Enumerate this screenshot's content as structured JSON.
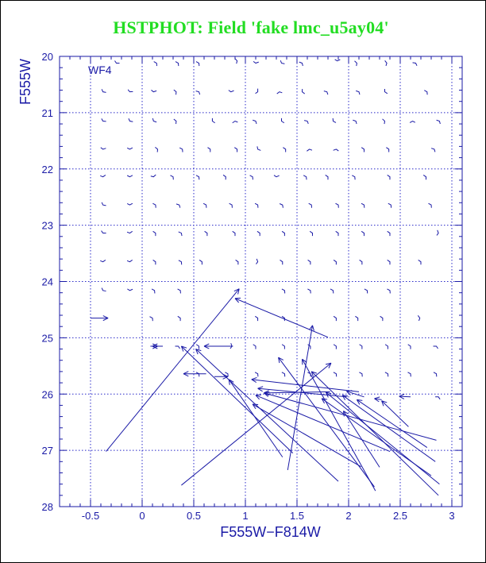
{
  "colors": {
    "title": "#22dd22",
    "axes": "#1a1aa6",
    "vectors": "#1a1aa6",
    "grid": "#2828c8",
    "background": "#ffffff"
  },
  "chart_data": {
    "type": "vector-field",
    "title": "HSTPHOT: Field 'fake lmc_u5ay04'",
    "panel_label": "WF4",
    "xlabel": "F555W−F814W",
    "ylabel": "F555W",
    "xlim": [
      -0.8,
      3.1
    ],
    "ylim": [
      28,
      20
    ],
    "y_inverted": true,
    "grid": true,
    "grid_style": "dotted",
    "xticks": [
      -0.5,
      0,
      0.5,
      1,
      1.5,
      2,
      2.5,
      3
    ],
    "xtick_labels": [
      "-0.5",
      "0",
      "0.5",
      "1",
      "1.5",
      "2",
      "2.5",
      "3"
    ],
    "yticks": [
      20,
      21,
      22,
      23,
      24,
      25,
      26,
      27,
      28
    ],
    "ytick_labels": [
      "20",
      "21",
      "22",
      "23",
      "24",
      "25",
      "26",
      "27",
      "28"
    ],
    "short_vectors": [
      [
        -0.25,
        20.12,
        -0.1,
        20.12
      ],
      [
        0.14,
        20.12,
        0.08,
        20.06
      ],
      [
        0.35,
        20.12,
        0.29,
        20.06
      ],
      [
        0.55,
        20.12,
        0.48,
        20.05
      ],
      [
        0.92,
        20.08,
        0.89,
        20.02
      ],
      [
        1.1,
        20.12,
        1.16,
        20.08
      ],
      [
        1.35,
        20.12,
        1.42,
        20.15
      ],
      [
        1.55,
        20.12,
        1.49,
        20.08
      ],
      [
        1.89,
        20.08,
        1.95,
        20.03
      ],
      [
        2.08,
        20.12,
        2.04,
        20.05
      ],
      [
        2.37,
        20.12,
        2.34,
        20.05
      ],
      [
        2.65,
        20.12,
        2.58,
        20.1
      ],
      [
        -0.38,
        20.63,
        -0.32,
        20.65
      ],
      [
        -0.12,
        20.63,
        -0.05,
        20.62
      ],
      [
        0.11,
        20.63,
        0.16,
        20.6
      ],
      [
        0.33,
        20.63,
        0.29,
        20.57
      ],
      [
        0.55,
        20.63,
        0.49,
        20.6
      ],
      [
        0.86,
        20.63,
        0.9,
        20.6
      ],
      [
        1.12,
        20.63,
        1.12,
        20.57
      ],
      [
        1.33,
        20.63,
        1.28,
        20.7
      ],
      [
        1.55,
        20.63,
        1.6,
        20.7
      ],
      [
        1.79,
        20.63,
        1.73,
        20.6
      ],
      [
        2.1,
        20.63,
        2.05,
        20.6
      ],
      [
        2.35,
        20.63,
        2.4,
        20.69
      ],
      [
        2.76,
        20.63,
        2.72,
        20.59
      ],
      [
        -0.38,
        21.15,
        -0.32,
        21.16
      ],
      [
        -0.12,
        21.15,
        -0.06,
        21.17
      ],
      [
        0.11,
        21.15,
        0.16,
        21.18
      ],
      [
        0.33,
        21.15,
        0.29,
        21.09
      ],
      [
        0.68,
        21.15,
        0.72,
        21.2
      ],
      [
        0.9,
        21.15,
        0.86,
        21.2
      ],
      [
        1.1,
        21.15,
        1.05,
        21.12
      ],
      [
        1.35,
        21.15,
        1.39,
        21.2
      ],
      [
        1.6,
        21.15,
        1.53,
        21.12
      ],
      [
        1.85,
        21.15,
        1.9,
        21.2
      ],
      [
        2.07,
        21.15,
        2.02,
        21.12
      ],
      [
        2.35,
        21.15,
        2.32,
        21.1
      ],
      [
        2.62,
        21.15,
        2.57,
        21.2
      ],
      [
        2.88,
        21.15,
        2.83,
        21.12
      ],
      [
        -0.38,
        21.65,
        -0.33,
        21.62
      ],
      [
        -0.12,
        21.65,
        -0.07,
        21.6
      ],
      [
        0.15,
        21.65,
        0.11,
        21.59
      ],
      [
        0.39,
        21.65,
        0.34,
        21.6
      ],
      [
        0.66,
        21.65,
        0.62,
        21.6
      ],
      [
        0.92,
        21.65,
        0.88,
        21.6
      ],
      [
        1.12,
        21.65,
        1.16,
        21.68
      ],
      [
        1.39,
        21.65,
        1.35,
        21.6
      ],
      [
        1.62,
        21.65,
        1.59,
        21.69
      ],
      [
        1.88,
        21.65,
        1.82,
        21.69
      ],
      [
        2.15,
        21.65,
        2.11,
        21.6
      ],
      [
        2.39,
        21.65,
        2.35,
        21.6
      ],
      [
        2.83,
        21.65,
        2.78,
        21.62
      ],
      [
        -0.38,
        22.14,
        -0.34,
        22.09
      ],
      [
        -0.12,
        22.14,
        -0.08,
        22.1
      ],
      [
        0.11,
        22.14,
        0.14,
        22.09
      ],
      [
        0.3,
        22.14,
        0.26,
        22.1
      ],
      [
        0.55,
        22.14,
        0.5,
        22.09
      ],
      [
        0.81,
        22.14,
        0.78,
        22.1
      ],
      [
        1.07,
        22.14,
        1.02,
        22.09
      ],
      [
        1.3,
        22.14,
        1.35,
        22.1
      ],
      [
        1.59,
        22.14,
        1.55,
        22.1
      ],
      [
        1.8,
        22.14,
        1.76,
        22.09
      ],
      [
        2.06,
        22.14,
        2.02,
        22.1
      ],
      [
        2.4,
        22.14,
        2.36,
        22.09
      ],
      [
        2.75,
        22.14,
        2.71,
        22.09
      ],
      [
        -0.38,
        22.64,
        -0.32,
        22.66
      ],
      [
        -0.12,
        22.64,
        -0.08,
        22.6
      ],
      [
        0.13,
        22.64,
        0.09,
        22.6
      ],
      [
        0.36,
        22.64,
        0.31,
        22.61
      ],
      [
        0.62,
        22.64,
        0.58,
        22.6
      ],
      [
        0.87,
        22.64,
        0.83,
        22.6
      ],
      [
        1.12,
        22.64,
        1.08,
        22.6
      ],
      [
        1.36,
        22.64,
        1.31,
        22.6
      ],
      [
        1.64,
        22.64,
        1.6,
        22.6
      ],
      [
        1.9,
        22.64,
        1.86,
        22.6
      ],
      [
        2.15,
        22.64,
        2.11,
        22.6
      ],
      [
        2.41,
        22.64,
        2.37,
        22.6
      ],
      [
        2.8,
        22.64,
        2.76,
        22.6
      ],
      [
        -0.38,
        23.14,
        -0.32,
        23.14
      ],
      [
        -0.12,
        23.14,
        -0.08,
        23.09
      ],
      [
        0.13,
        23.14,
        0.09,
        23.09
      ],
      [
        0.38,
        23.14,
        0.33,
        23.1
      ],
      [
        0.63,
        23.14,
        0.59,
        23.09
      ],
      [
        0.9,
        23.14,
        0.86,
        23.09
      ],
      [
        1.14,
        23.14,
        1.1,
        23.09
      ],
      [
        1.38,
        23.14,
        1.34,
        23.09
      ],
      [
        1.65,
        23.14,
        1.61,
        23.09
      ],
      [
        1.9,
        23.14,
        1.86,
        23.09
      ],
      [
        2.15,
        23.14,
        2.11,
        23.09
      ],
      [
        2.4,
        23.14,
        2.36,
        23.09
      ],
      [
        2.87,
        23.14,
        2.86,
        23.09
      ],
      [
        -0.38,
        23.65,
        -0.34,
        23.6
      ],
      [
        -0.12,
        23.65,
        -0.08,
        23.6
      ],
      [
        0.13,
        23.65,
        0.09,
        23.6
      ],
      [
        0.38,
        23.65,
        0.33,
        23.6
      ],
      [
        0.58,
        23.65,
        0.54,
        23.6
      ],
      [
        0.93,
        23.65,
        0.89,
        23.6
      ],
      [
        1.12,
        23.65,
        1.11,
        23.6
      ],
      [
        1.36,
        23.65,
        1.32,
        23.6
      ],
      [
        1.63,
        23.65,
        1.59,
        23.6
      ],
      [
        1.88,
        23.65,
        1.84,
        23.6
      ],
      [
        2.13,
        23.65,
        2.09,
        23.6
      ],
      [
        2.4,
        23.65,
        2.36,
        23.6
      ],
      [
        2.7,
        23.65,
        2.66,
        23.6
      ],
      [
        -0.38,
        24.16,
        -0.32,
        24.18
      ],
      [
        -0.12,
        24.16,
        -0.07,
        24.12
      ],
      [
        0.12,
        24.16,
        0.08,
        24.12
      ],
      [
        0.37,
        24.16,
        0.33,
        24.12
      ],
      [
        1.38,
        24.16,
        1.34,
        24.12
      ],
      [
        1.63,
        24.16,
        1.59,
        24.12
      ],
      [
        1.85,
        24.16,
        1.81,
        24.12
      ],
      [
        2.18,
        24.16,
        2.14,
        24.12
      ],
      [
        2.4,
        24.16,
        2.36,
        24.12
      ],
      [
        0.1,
        24.65,
        0.05,
        24.6
      ],
      [
        0.37,
        24.65,
        0.33,
        24.6
      ],
      [
        1.12,
        24.65,
        1.08,
        24.6
      ],
      [
        1.38,
        24.65,
        1.34,
        24.6
      ],
      [
        1.88,
        24.65,
        1.84,
        24.6
      ],
      [
        2.09,
        24.65,
        2.05,
        24.6
      ],
      [
        2.33,
        24.65,
        2.29,
        24.6
      ],
      [
        2.69,
        24.65,
        2.67,
        24.6
      ],
      [
        0.35,
        25.15,
        0.29,
        25.15
      ],
      [
        0.55,
        25.15,
        0.51,
        25.1
      ],
      [
        0.87,
        25.15,
        0.86,
        25.1
      ],
      [
        1.1,
        25.15,
        1.06,
        25.1
      ],
      [
        1.38,
        25.15,
        1.34,
        25.1
      ],
      [
        1.63,
        25.15,
        1.59,
        25.1
      ],
      [
        1.88,
        25.15,
        1.84,
        25.1
      ],
      [
        2.13,
        25.15,
        2.09,
        25.1
      ],
      [
        2.38,
        25.15,
        2.34,
        25.1
      ],
      [
        2.6,
        25.15,
        2.56,
        25.1
      ],
      [
        2.85,
        25.15,
        2.79,
        25.15
      ],
      [
        0.55,
        25.64,
        0.51,
        25.6
      ],
      [
        0.83,
        25.64,
        0.79,
        25.6
      ],
      [
        1.12,
        25.64,
        1.08,
        25.6
      ],
      [
        1.38,
        25.64,
        1.34,
        25.6
      ],
      [
        1.63,
        25.64,
        1.59,
        25.6
      ],
      [
        1.88,
        25.64,
        1.84,
        25.6
      ],
      [
        2.13,
        25.64,
        2.09,
        25.6
      ],
      [
        2.38,
        25.64,
        2.34,
        25.6
      ],
      [
        2.6,
        25.64,
        2.56,
        25.6
      ],
      [
        2.85,
        25.64,
        2.81,
        25.6
      ],
      [
        2.87,
        26.05,
        2.81,
        26.05
      ]
    ],
    "long_vectors": [
      [
        -0.35,
        27.02,
        0.94,
        24.13
      ],
      [
        -0.5,
        24.65,
        -0.33,
        24.65
      ],
      [
        0.08,
        25.15,
        0.15,
        25.15
      ],
      [
        0.2,
        25.15,
        0.1,
        25.15
      ],
      [
        0.88,
        25.15,
        0.6,
        25.15
      ],
      [
        1.46,
        27.05,
        0.38,
        25.15
      ],
      [
        0.62,
        25.64,
        0.4,
        25.64
      ],
      [
        0.7,
        25.69,
        0.83,
        25.69
      ],
      [
        1.36,
        27.12,
        0.84,
        25.74
      ],
      [
        1.41,
        27.35,
        1.65,
        24.78
      ],
      [
        1.8,
        24.99,
        0.9,
        24.3
      ],
      [
        1.9,
        27.55,
        0.52,
        25.2
      ],
      [
        2.25,
        27.65,
        1.32,
        25.35
      ],
      [
        2.26,
        27.72,
        1.55,
        25.38
      ],
      [
        2.87,
        27.8,
        1.64,
        25.6
      ],
      [
        2.1,
        25.96,
        1.06,
        25.74
      ],
      [
        2.85,
        26.82,
        1.18,
        25.98
      ],
      [
        2.76,
        26.95,
        2.08,
        26.1
      ],
      [
        2.84,
        27.2,
        1.94,
        26.02
      ],
      [
        2.3,
        27.3,
        1.95,
        26.3
      ],
      [
        2.58,
        26.58,
        2.32,
        26.12
      ],
      [
        2.8,
        27.45,
        1.74,
        26.08
      ],
      [
        2.88,
        27.6,
        1.78,
        25.97
      ],
      [
        2.4,
        27.02,
        1.1,
        26.02
      ],
      [
        2.12,
        27.29,
        1.07,
        26.18
      ],
      [
        1.98,
        26.05,
        1.12,
        25.9
      ],
      [
        0.38,
        27.62,
        1.83,
        25.45
      ],
      [
        2.15,
        26.05,
        1.98,
        25.95
      ],
      [
        2.32,
        26.1,
        2.25,
        26.08
      ],
      [
        2.6,
        26.05,
        2.49,
        26.04
      ],
      [
        1.82,
        25.96,
        1.18,
        25.98
      ]
    ]
  }
}
